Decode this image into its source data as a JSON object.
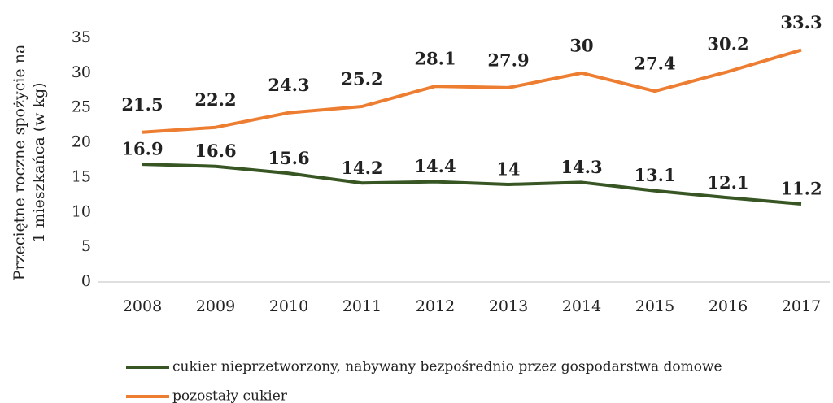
{
  "chart_data": {
    "type": "line",
    "ylabel": [
      "Przeciętne roczne spożycie na",
      "1 mieszkańca (w kg)"
    ],
    "categories": [
      "2008",
      "2009",
      "2010",
      "2011",
      "2012",
      "2013",
      "2014",
      "2015",
      "2016",
      "2017"
    ],
    "series": [
      {
        "name": "cukier nieprzetworzony, nabywany bezpośrednio przez gospodarstwa domowe",
        "color": "#375623",
        "values": [
          16.9,
          16.6,
          15.6,
          14.2,
          14.4,
          14,
          14.3,
          13.1,
          12.1,
          11.2
        ]
      },
      {
        "name": "pozostały cukier",
        "color": "#ed7d31",
        "values": [
          21.5,
          22.2,
          24.3,
          25.2,
          28.1,
          27.9,
          30,
          27.4,
          30.2,
          33.3
        ]
      }
    ],
    "ylim": [
      0,
      35
    ],
    "yticks": [
      0,
      5,
      10,
      15,
      20,
      25,
      30,
      35
    ],
    "grid": false,
    "legend": "bottom"
  }
}
